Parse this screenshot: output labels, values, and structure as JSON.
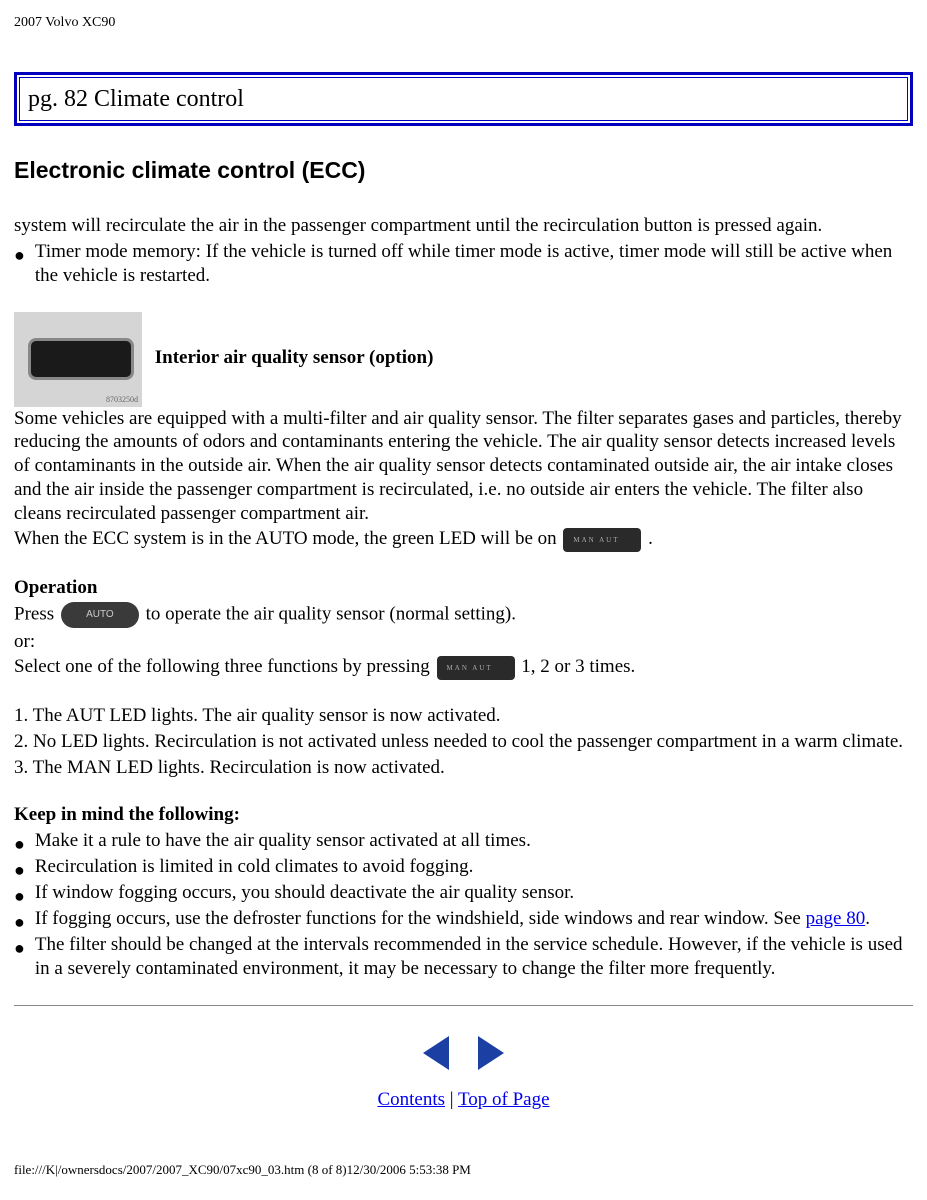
{
  "doc_title": "2007 Volvo XC90",
  "page_header": "pg. 82 Climate control",
  "heading": "Electronic climate control (ECC)",
  "intro_para": "system will recirculate the air in the passenger compartment until the recirculation button is pressed again.",
  "timer_bullet": "Timer mode memory: If the vehicle is turned off while timer mode is active, timer mode will still be active when the vehicle is restarted.",
  "img_tag": "8703250d",
  "sensor_heading": "Interior air quality sensor (option)",
  "sensor_para": "Some vehicles are equipped with a multi-filter and air quality sensor. The filter separates gases and particles, thereby reducing the amounts of odors and contaminants entering the vehicle. The air quality sensor detects increased levels of contaminants in the outside air. When the air quality sensor detects contaminated outside air, the air intake closes and the air inside the passenger compartment is recirculated, i.e. no outside air enters the vehicle. The filter also cleans recirculated passenger compartment air.",
  "auto_line_pre": "When the ECC system is in the AUTO mode, the green LED will be on ",
  "auto_line_post": " .",
  "operation_heading": "Operation",
  "press_pre": "Press ",
  "press_post": " to operate the air quality sensor (normal setting).",
  "or_text": "or:",
  "select_pre": "Select one of the following three functions by pressing ",
  "select_post": " 1, 2 or 3 times.",
  "op1": "1. The AUT LED lights. The air quality sensor is now activated.",
  "op2": "2. No LED lights. Recirculation is not activated unless needed to cool the passenger compartment in a warm climate.",
  "op3": "3. The MAN LED lights. Recirculation is now activated.",
  "keep_heading": "Keep in mind the following:",
  "keep": [
    "Make it a rule to have the air quality sensor activated at all times.",
    "Recirculation is limited in cold climates to avoid fogging.",
    "If window fogging occurs, you should deactivate the air quality sensor."
  ],
  "keep_fog_pre": "If fogging occurs, use the defroster functions for the windshield, side windows and rear window. See ",
  "keep_fog_link": "page 80",
  "keep_fog_post": ".",
  "keep_last": "The filter should be changed at the intervals recommended in the service schedule. However, if the vehicle is used in a severely contaminated environment, it may be necessary to change the filter more frequently.",
  "nav": {
    "contents": "Contents",
    "sep": " | ",
    "top": "Top of Page"
  },
  "file_path": "file:///K|/ownersdocs/2007/2007_XC90/07xc90_03.htm (8 of 8)12/30/2006 5:53:38 PM",
  "colors": {
    "border": "#0200be",
    "link": "#0000ee",
    "tri": "#1b3fa3"
  }
}
